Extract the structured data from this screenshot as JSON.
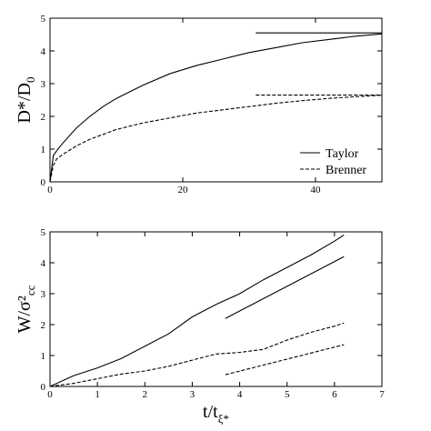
{
  "chart_data": [
    {
      "type": "line",
      "y_label": "D*/D",
      "y_label_sub": "0",
      "xlim": [
        0,
        50
      ],
      "ylim": [
        0,
        5
      ],
      "xticks": [
        0,
        20,
        40
      ],
      "yticks": [
        0,
        1,
        2,
        3,
        4,
        5
      ],
      "legend": "lower right",
      "series": [
        {
          "name": "Taylor",
          "color": "#000",
          "dash": false,
          "x": [
            0,
            0.5,
            1,
            2,
            4,
            6,
            8,
            10,
            14,
            18,
            22,
            26,
            30,
            34,
            38,
            42,
            46,
            50
          ],
          "values": [
            0,
            0.8,
            0.95,
            1.2,
            1.65,
            2.0,
            2.3,
            2.55,
            2.95,
            3.3,
            3.55,
            3.75,
            3.95,
            4.1,
            4.25,
            4.35,
            4.45,
            4.52
          ]
        },
        {
          "name": "Brenner",
          "color": "#000",
          "dash": true,
          "x": [
            0,
            0.5,
            1,
            2,
            4,
            6,
            8,
            10,
            14,
            18,
            22,
            26,
            30,
            34,
            38,
            42,
            46,
            50
          ],
          "values": [
            0,
            0.5,
            0.7,
            0.85,
            1.1,
            1.3,
            1.45,
            1.6,
            1.8,
            1.95,
            2.1,
            2.2,
            2.3,
            2.4,
            2.48,
            2.55,
            2.6,
            2.65
          ]
        }
      ],
      "reference_lines": [
        {
          "color": "#000",
          "dash": false,
          "x": [
            31,
            50
          ],
          "values": [
            4.55,
            4.55
          ]
        },
        {
          "color": "#000",
          "dash": true,
          "x": [
            31,
            50
          ],
          "values": [
            2.65,
            2.65
          ]
        }
      ]
    },
    {
      "type": "line",
      "y_label": "W/σ²",
      "y_label_sub": "cc",
      "x_label": "t/t",
      "x_label_sub": "ξ*",
      "xlim": [
        0,
        7
      ],
      "ylim": [
        0,
        5
      ],
      "xticks": [
        0,
        1,
        2,
        3,
        4,
        5,
        6,
        7
      ],
      "yticks": [
        0,
        1,
        2,
        3,
        4,
        5
      ],
      "series": [
        {
          "color": "#000",
          "dash": false,
          "x": [
            0,
            0.5,
            1,
            1.5,
            2,
            2.5,
            3,
            3.5,
            4,
            4.5,
            5,
            5.5,
            6,
            6.2
          ],
          "values": [
            0,
            0.35,
            0.6,
            0.9,
            1.3,
            1.7,
            2.25,
            2.65,
            3.0,
            3.45,
            3.85,
            4.25,
            4.7,
            4.9
          ]
        },
        {
          "color": "#000",
          "dash": true,
          "x": [
            0,
            0.5,
            1,
            1.5,
            2,
            2.5,
            3,
            3.5,
            4,
            4.5,
            5,
            5.5,
            6,
            6.2
          ],
          "values": [
            0,
            0.1,
            0.25,
            0.4,
            0.5,
            0.65,
            0.85,
            1.05,
            1.1,
            1.2,
            1.5,
            1.75,
            1.95,
            2.05
          ]
        }
      ],
      "reference_lines": [
        {
          "color": "#000",
          "dash": false,
          "x": [
            3.7,
            6.2
          ],
          "values": [
            2.2,
            4.2
          ]
        },
        {
          "color": "#000",
          "dash": true,
          "x": [
            3.7,
            6.2
          ],
          "values": [
            0.38,
            1.35
          ]
        }
      ]
    }
  ]
}
